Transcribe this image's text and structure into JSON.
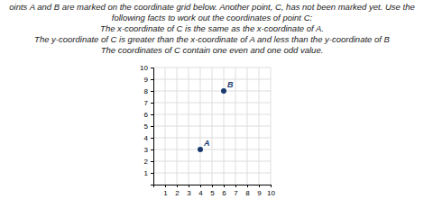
{
  "chart_data": {
    "type": "scatter",
    "title": "oints A and B are marked on the coordinate grid below. Another point, C, has not been marked yet. Use the",
    "subtitle": "following facts to work out the coordinates of point C:",
    "annotations": [
      "The x‐coordinate of C is the same as the x‐coordinate of A.",
      "The y‐coordinate of C is greater than the x‐coordinate of A and less than the y‐coordinate of B",
      "The coordinates of C contain one even and one odd value."
    ],
    "x": [
      4,
      6
    ],
    "values": [
      3,
      8
    ],
    "point_labels": [
      "A",
      "B"
    ],
    "color": "#1a3a6e",
    "xlim": [
      0,
      10
    ],
    "ylim": [
      0,
      10
    ],
    "xticks": [
      1,
      2,
      3,
      4,
      5,
      6,
      7,
      8,
      9,
      10
    ],
    "yticks": [
      1,
      2,
      3,
      4,
      5,
      6,
      7,
      8,
      9,
      10
    ],
    "grid": true
  }
}
